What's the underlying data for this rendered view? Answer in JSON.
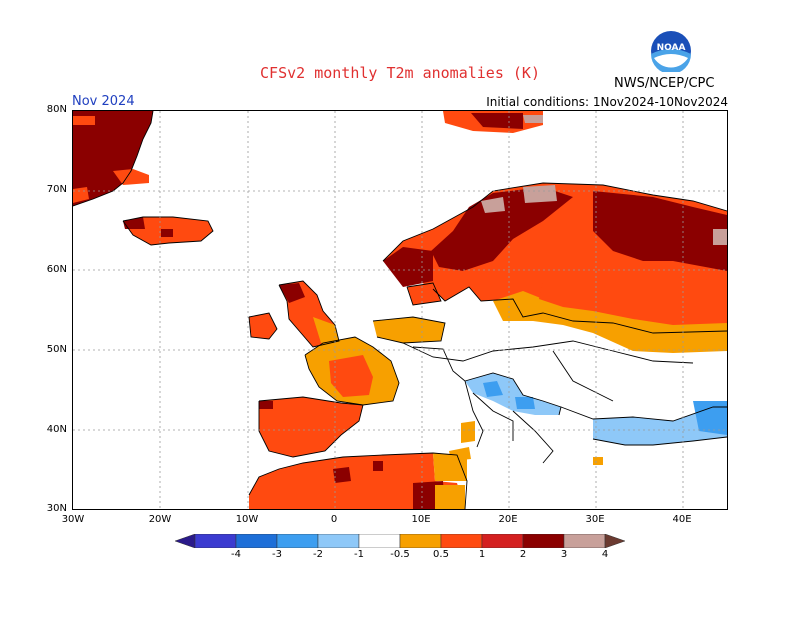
{
  "title": "CFSv2 monthly T2m anomalies (K)",
  "month": "Nov 2024",
  "agency": "NWS/NCEP/CPC",
  "logo_text": "NOAA",
  "initial_conditions": "Initial conditions: 1Nov2024-10Nov2024",
  "lat_labels": [
    "80N",
    "70N",
    "60N",
    "50N",
    "40N",
    "30N"
  ],
  "lon_labels": [
    "30W",
    "20W",
    "10W",
    "0",
    "10E",
    "20E",
    "30E",
    "40E"
  ],
  "colorbar": {
    "labels": [
      "-4",
      "-3",
      "-2",
      "-1",
      "-0.5",
      "0.5",
      "1",
      "2",
      "3",
      "4"
    ],
    "colors": [
      "#2a1a8a",
      "#3b3bd0",
      "#1e6fd8",
      "#3d9ef0",
      "#8ec8f8",
      "#ffffff",
      "#f7a000",
      "#ff4a10",
      "#d42020",
      "#8b0000",
      "#c8a09a",
      "#6b3a30"
    ]
  },
  "map_extent": {
    "lon": [
      -30,
      45
    ],
    "lat": [
      30,
      80
    ]
  }
}
